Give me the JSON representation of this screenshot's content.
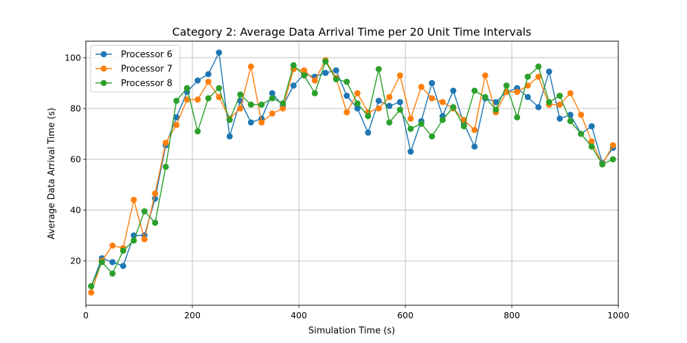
{
  "chart_data": {
    "type": "line",
    "title": "Category 2: Average Data Arrival Time per 20 Unit Time Intervals",
    "xlabel": "Simulation Time (s)",
    "ylabel": "Average Data Arrival Time (s)",
    "xlim": [
      0,
      1000
    ],
    "ylim": [
      2.5,
      106.5
    ],
    "xticks": [
      0,
      200,
      400,
      600,
      800,
      1000
    ],
    "yticks": [
      20,
      40,
      60,
      80,
      100
    ],
    "grid": true,
    "legend_position": "upper-left",
    "x": [
      10,
      30,
      50,
      70,
      90,
      110,
      130,
      150,
      170,
      190,
      210,
      230,
      250,
      270,
      290,
      310,
      330,
      350,
      370,
      390,
      410,
      430,
      450,
      470,
      490,
      510,
      530,
      550,
      570,
      590,
      610,
      630,
      650,
      670,
      690,
      710,
      730,
      750,
      770,
      790,
      810,
      830,
      850,
      870,
      890,
      910,
      930,
      950,
      970,
      990
    ],
    "series": [
      {
        "name": "Processor 6",
        "color": "#1f77b4",
        "values": [
          10,
          21,
          19.5,
          18,
          30,
          30,
          44.5,
          65.5,
          76.5,
          86.5,
          91,
          93.5,
          102,
          69,
          83,
          74.5,
          76,
          86,
          81,
          89,
          93.5,
          92.5,
          94,
          95,
          85,
          80,
          70.5,
          83,
          81,
          82.5,
          63,
          75,
          90,
          77,
          87,
          74,
          65,
          84,
          82.5,
          86.5,
          88,
          84.5,
          80.5,
          94.5,
          76,
          77.5,
          70,
          73,
          58.5,
          64.5
        ]
      },
      {
        "name": "Processor 7",
        "color": "#ff7f0e",
        "values": [
          7.5,
          20,
          26,
          25,
          44,
          28.5,
          46.5,
          66.5,
          73.5,
          83.5,
          83.5,
          90.5,
          84.5,
          76,
          80,
          96.5,
          74.5,
          78,
          80,
          95.5,
          95,
          91,
          99,
          92,
          78.5,
          86,
          78.5,
          80,
          84.5,
          93,
          76,
          88.5,
          84,
          82.5,
          80,
          75.5,
          71.5,
          93,
          78.5,
          86.5,
          86.5,
          89,
          92.5,
          81.5,
          81.5,
          86,
          77.5,
          67,
          58,
          65.5
        ]
      },
      {
        "name": "Processor 8",
        "color": "#2ca02c",
        "values": [
          10,
          19.5,
          15,
          24,
          28,
          39.5,
          35,
          57,
          83,
          88,
          71,
          84,
          88,
          75.5,
          85.5,
          81.5,
          81.5,
          84,
          82,
          97,
          93,
          86,
          98.5,
          91.5,
          90.5,
          82,
          77,
          95.5,
          74.5,
          79.5,
          72,
          74,
          69,
          75.5,
          80.5,
          73,
          87,
          84.5,
          79.5,
          89,
          76.5,
          92.5,
          96.5,
          82.5,
          85,
          75,
          70,
          65,
          58,
          60
        ]
      }
    ]
  }
}
